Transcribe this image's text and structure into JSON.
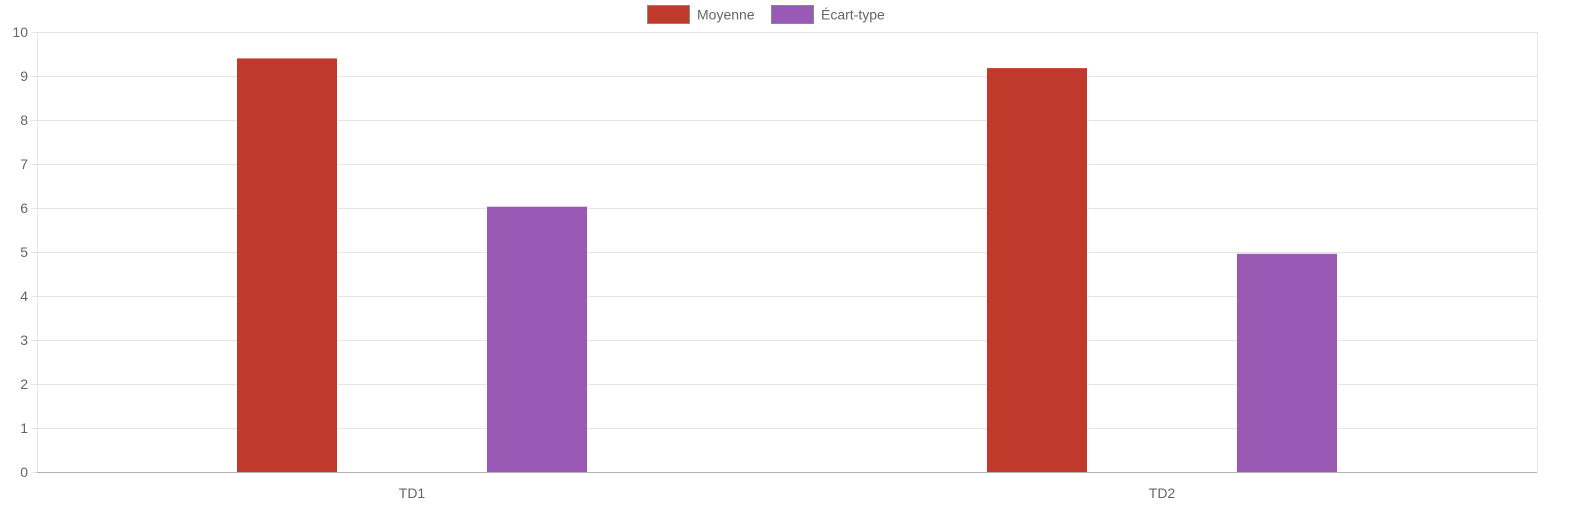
{
  "chart_data": {
    "type": "bar",
    "categories": [
      "TD1",
      "TD2"
    ],
    "series": [
      {
        "name": "Moyenne",
        "values": [
          9.4,
          9.18
        ],
        "color": "#c0392b"
      },
      {
        "name": "Écart-type",
        "values": [
          6.03,
          4.96
        ],
        "color": "#9b59b6"
      }
    ],
    "title": "",
    "xlabel": "",
    "ylabel": "",
    "ylim": [
      0,
      10
    ],
    "yticks": [
      "0",
      "1",
      "2",
      "3",
      "4",
      "5",
      "6",
      "7",
      "8",
      "9",
      "10"
    ],
    "grid": true,
    "legend_position": "top-center"
  }
}
